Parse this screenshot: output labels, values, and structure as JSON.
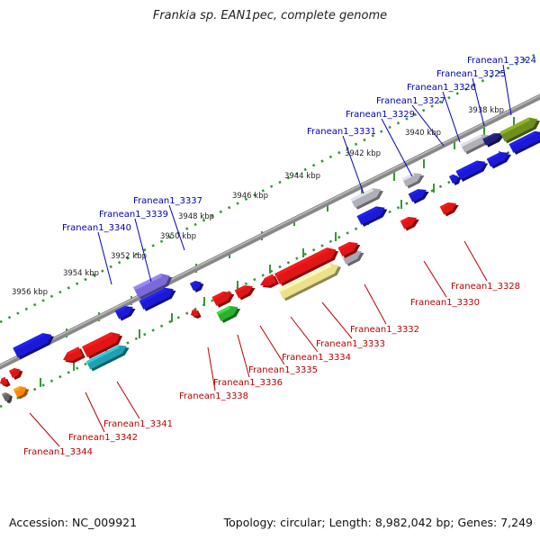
{
  "title": "Frankia sp. EAN1pec, complete genome",
  "footer": {
    "accession": "Accession: NC_009921",
    "topology": "Topology: circular; Length: 8,982,042 bp; Genes: 7,249"
  },
  "colors": {
    "top_label": "#0000bb",
    "bottom_label": "#bb0000",
    "backbone": "#888888",
    "ruler_dots": "#339933",
    "kbp_text": "#222222"
  },
  "ruler": {
    "labels": [
      "3938 kbp",
      "3940 kbp",
      "3942 kbp",
      "3944 kbp",
      "3946 kbp",
      "3948 kbp",
      "3950 kbp",
      "3952 kbp",
      "3954 kbp",
      "3956 kbp"
    ]
  },
  "top_labels": [
    "Franean1_3324",
    "Franean1_3325",
    "Franean1_3326",
    "Franean1_3327",
    "Franean1_3329",
    "Franean1_3331",
    "Franean1_3337",
    "Franean1_3339",
    "Franean1_3340"
  ],
  "bottom_labels": [
    "Franean1_3328",
    "Franean1_3330",
    "Franean1_3332",
    "Franean1_3333",
    "Franean1_3334",
    "Franean1_3335",
    "Franean1_3336",
    "Franean1_3338",
    "Franean1_3341",
    "Franean1_3342",
    "Franean1_3344"
  ]
}
